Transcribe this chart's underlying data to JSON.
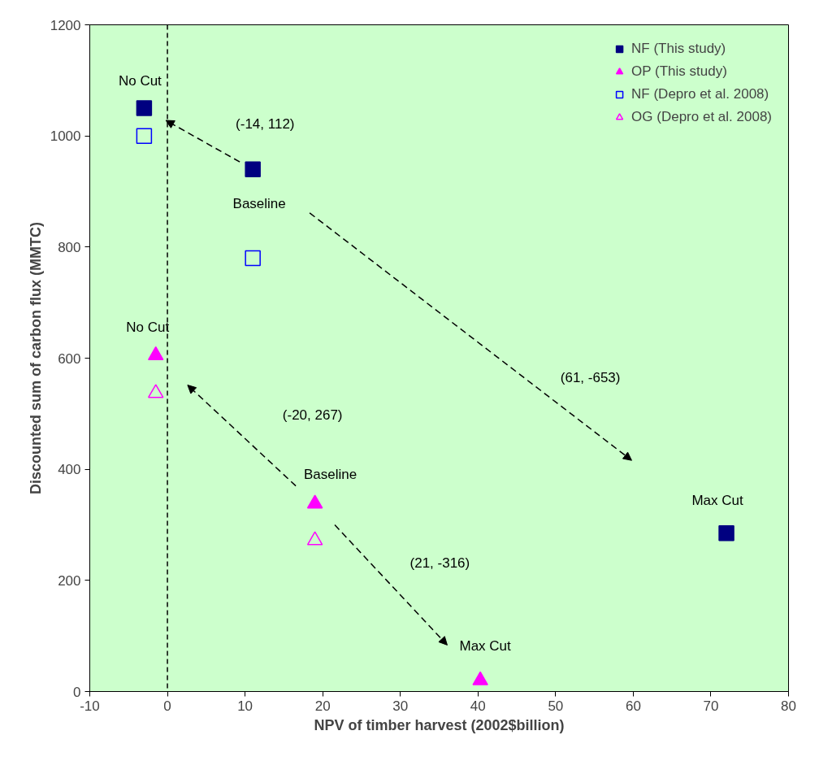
{
  "chart_data": {
    "type": "scatter",
    "xlabel": "NPV of timber harvest (2002$billion)",
    "ylabel": "Discounted sum of carbon flux (MMTC)",
    "xlim": [
      -10,
      80
    ],
    "xticks": [
      -10,
      0,
      10,
      20,
      30,
      40,
      50,
      60,
      70,
      80
    ],
    "ylim": [
      0,
      1200
    ],
    "yticks": [
      0,
      200,
      400,
      600,
      800,
      1000,
      1200
    ],
    "grid": false,
    "legend": "top right",
    "series": [
      {
        "name": "NF (This study)",
        "color": "#000080",
        "marker": "square",
        "x": [
          -3,
          11,
          72
        ],
        "values": [
          1050,
          940,
          285
        ]
      },
      {
        "name": "OP (This study)",
        "color": "#ff00ff",
        "marker": "triangle",
        "x": [
          -1.5,
          19,
          40.3
        ],
        "values": [
          605,
          338,
          20
        ]
      },
      {
        "name": "NF (Depro et al. 2008)",
        "color": "#0000ff",
        "marker": "square",
        "x": [
          -3,
          11
        ],
        "values": [
          1000,
          780
        ]
      },
      {
        "name": "OG (Depro et al. 2008)",
        "color": "#ff00ff",
        "marker": "triangle",
        "x": [
          -1.5,
          19
        ],
        "values": [
          537,
          272
        ]
      }
    ],
    "ref_lines": [
      {
        "axis": "x",
        "value": 0,
        "label": null,
        "color": "#000000",
        "line_style": "dashed"
      }
    ],
    "annotations": [
      "No Cut",
      "Baseline",
      "Max Cut",
      "No Cut",
      "Baseline",
      "Max Cut",
      "(-14, 112)",
      "(61, -653)",
      "(-20, 267)",
      "(21, -316)"
    ]
  }
}
